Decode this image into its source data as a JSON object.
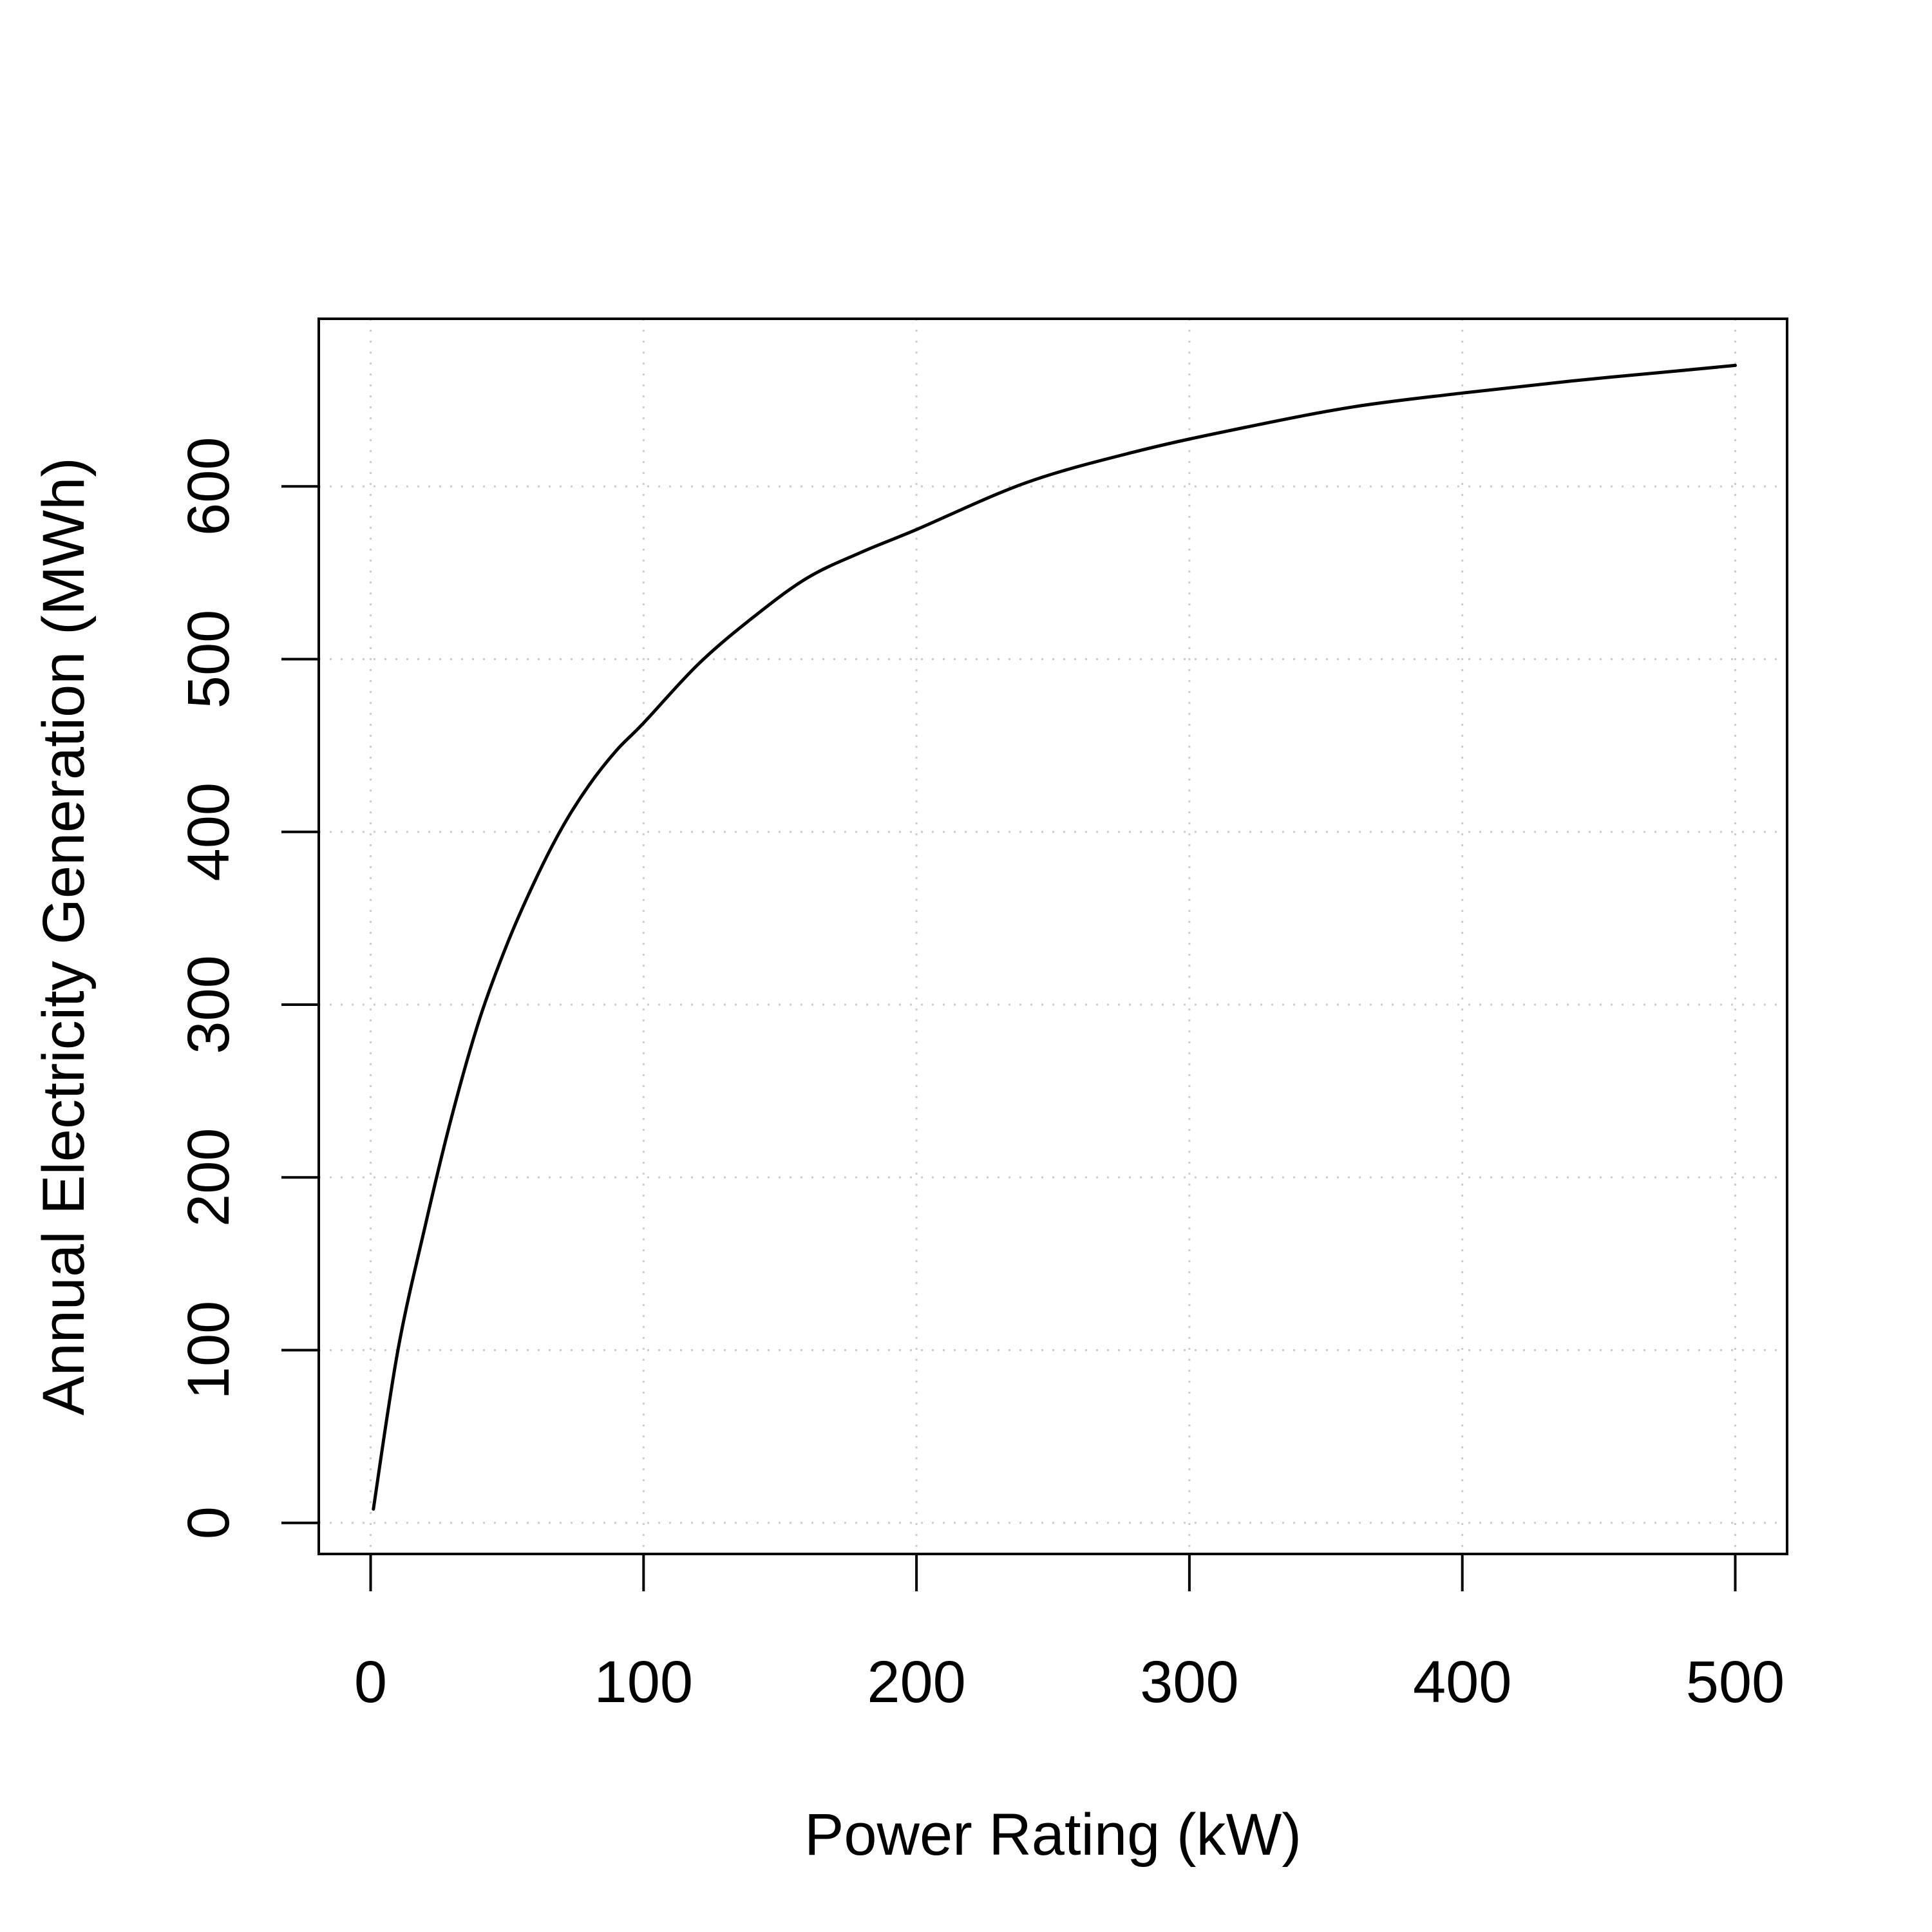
{
  "chart_data": {
    "type": "line",
    "title": "",
    "xlabel": "Power Rating (kW)",
    "ylabel": "Annual Electricity Generation (MWh)",
    "xlim": [
      -19,
      519
    ],
    "ylim": [
      -18,
      697
    ],
    "x_ticks": [
      0,
      100,
      200,
      300,
      400,
      500
    ],
    "y_ticks": [
      0,
      100,
      200,
      300,
      400,
      500,
      600
    ],
    "x_tick_labels": [
      "0",
      "100",
      "200",
      "300",
      "400",
      "500"
    ],
    "y_tick_labels": [
      "0",
      "100",
      "200",
      "300",
      "400",
      "500",
      "600"
    ],
    "grid": true,
    "legend": "none",
    "line_color": "#000000",
    "grid_color": "#cccccc",
    "series": [
      {
        "x": [
          1,
          10,
          20,
          30,
          40,
          50,
          60,
          70,
          80,
          90,
          100,
          120,
          140,
          160,
          180,
          200,
          240,
          280,
          320,
          360,
          400,
          440,
          480,
          500
        ],
        "values": [
          8,
          100,
          172,
          237,
          292,
          335,
          371,
          402,
          427,
          447,
          463,
          497,
          524,
          547,
          562,
          575,
          602,
          620,
          634,
          646,
          654,
          661,
          667,
          670
        ]
      }
    ]
  }
}
